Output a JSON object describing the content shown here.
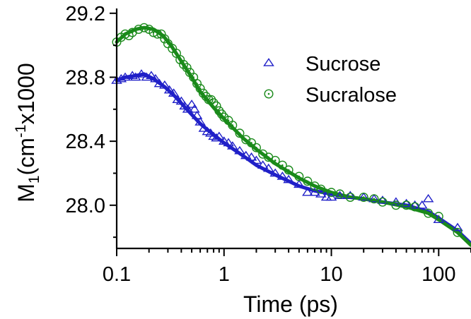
{
  "chart_data": {
    "type": "scatter",
    "title": "",
    "xlabel": "Time (ps)",
    "ylabel": {
      "main": "M",
      "sub": "1",
      "open": "(cm",
      "sup": "-1",
      "close": "x1000"
    },
    "x_scale": "log",
    "xlim": [
      0.1,
      200
    ],
    "ylim": [
      27.73,
      29.23
    ],
    "x_ticks": [
      0.1,
      1,
      10,
      100
    ],
    "x_tick_labels": [
      "0.1",
      "1",
      "10",
      "100"
    ],
    "y_ticks": [
      28.0,
      28.4,
      28.8,
      29.2
    ],
    "y_tick_labels": [
      "28.0",
      "28.4",
      "28.8",
      "29.2"
    ],
    "grid": false,
    "legend_position": "top-right",
    "series": [
      {
        "name": "Sucrose",
        "color": "#2020c8",
        "marker": "triangle",
        "points": [
          [
            0.1,
            28.78
          ],
          [
            0.11,
            28.79
          ],
          [
            0.12,
            28.8
          ],
          [
            0.14,
            28.81
          ],
          [
            0.15,
            28.8
          ],
          [
            0.17,
            28.82
          ],
          [
            0.19,
            28.8
          ],
          [
            0.21,
            28.81
          ],
          [
            0.23,
            28.79
          ],
          [
            0.25,
            28.76
          ],
          [
            0.28,
            28.75
          ],
          [
            0.31,
            28.72
          ],
          [
            0.34,
            28.7
          ],
          [
            0.37,
            28.66
          ],
          [
            0.4,
            28.65
          ],
          [
            0.43,
            28.62
          ],
          [
            0.46,
            28.6
          ],
          [
            0.5,
            28.63
          ],
          [
            0.53,
            28.6
          ],
          [
            0.56,
            28.56
          ],
          [
            0.6,
            28.52
          ],
          [
            0.65,
            28.48
          ],
          [
            0.7,
            28.46
          ],
          [
            0.75,
            28.45
          ],
          [
            0.8,
            28.43
          ],
          [
            0.85,
            28.42
          ],
          [
            0.9,
            28.43
          ],
          [
            1.0,
            28.4
          ],
          [
            1.1,
            28.39
          ],
          [
            1.2,
            28.37
          ],
          [
            1.4,
            28.34
          ],
          [
            1.6,
            28.31
          ],
          [
            1.8,
            28.3
          ],
          [
            2.0,
            28.28
          ],
          [
            2.3,
            28.25
          ],
          [
            2.6,
            28.23
          ],
          [
            3.0,
            28.2
          ],
          [
            3.5,
            28.18
          ],
          [
            4.0,
            28.16
          ],
          [
            5.0,
            28.13
          ],
          [
            6.0,
            28.08
          ],
          [
            7.0,
            28.08
          ],
          [
            8.0,
            28.07
          ],
          [
            9.0,
            28.05
          ],
          [
            10,
            28.05
          ],
          [
            12,
            28.06
          ],
          [
            15,
            28.06
          ],
          [
            20,
            28.05
          ],
          [
            25,
            28.04
          ],
          [
            30,
            28.03
          ],
          [
            40,
            28.02
          ],
          [
            50,
            28.01
          ],
          [
            60,
            28.0
          ],
          [
            70,
            28.0
          ],
          [
            80,
            28.04
          ],
          [
            100,
            27.91
          ],
          [
            150,
            27.86
          ]
        ],
        "fit": [
          [
            0.1,
            28.78
          ],
          [
            0.12,
            28.8
          ],
          [
            0.15,
            28.81
          ],
          [
            0.18,
            28.82
          ],
          [
            0.22,
            28.79
          ],
          [
            0.28,
            28.74
          ],
          [
            0.35,
            28.68
          ],
          [
            0.45,
            28.6
          ],
          [
            0.6,
            28.51
          ],
          [
            0.8,
            28.44
          ],
          [
            1.0,
            28.39
          ],
          [
            1.5,
            28.31
          ],
          [
            2.0,
            28.25
          ],
          [
            3.0,
            28.19
          ],
          [
            5.0,
            28.12
          ],
          [
            7.0,
            28.09
          ],
          [
            10,
            28.07
          ],
          [
            15,
            28.05
          ],
          [
            20,
            28.04
          ],
          [
            30,
            28.02
          ],
          [
            50,
            28.0
          ],
          [
            80,
            27.96
          ],
          [
            100,
            27.92
          ],
          [
            150,
            27.84
          ],
          [
            200,
            27.76
          ]
        ]
      },
      {
        "name": "Sucralose",
        "color": "#1a8a1a",
        "marker": "circle",
        "points": [
          [
            0.1,
            29.02
          ],
          [
            0.11,
            29.05
          ],
          [
            0.12,
            29.07
          ],
          [
            0.13,
            29.06
          ],
          [
            0.14,
            29.08
          ],
          [
            0.16,
            29.1
          ],
          [
            0.18,
            29.11
          ],
          [
            0.2,
            29.1
          ],
          [
            0.22,
            29.08
          ],
          [
            0.24,
            29.07
          ],
          [
            0.26,
            29.07
          ],
          [
            0.28,
            29.04
          ],
          [
            0.3,
            29.01
          ],
          [
            0.33,
            28.98
          ],
          [
            0.36,
            28.95
          ],
          [
            0.39,
            28.91
          ],
          [
            0.42,
            28.88
          ],
          [
            0.45,
            28.86
          ],
          [
            0.48,
            28.83
          ],
          [
            0.52,
            28.8
          ],
          [
            0.56,
            28.76
          ],
          [
            0.6,
            28.73
          ],
          [
            0.64,
            28.7
          ],
          [
            0.68,
            28.68
          ],
          [
            0.72,
            28.66
          ],
          [
            0.76,
            28.66
          ],
          [
            0.8,
            28.64
          ],
          [
            0.85,
            28.62
          ],
          [
            0.9,
            28.59
          ],
          [
            0.95,
            28.57
          ],
          [
            1.0,
            28.55
          ],
          [
            1.1,
            28.53
          ],
          [
            1.2,
            28.5
          ],
          [
            1.4,
            28.45
          ],
          [
            1.6,
            28.41
          ],
          [
            1.8,
            28.39
          ],
          [
            2.0,
            28.36
          ],
          [
            2.3,
            28.32
          ],
          [
            2.6,
            28.3
          ],
          [
            3.0,
            28.28
          ],
          [
            3.5,
            28.25
          ],
          [
            4.0,
            28.22
          ],
          [
            5.0,
            28.18
          ],
          [
            6.0,
            28.15
          ],
          [
            7.0,
            28.12
          ],
          [
            8.0,
            28.1
          ],
          [
            10,
            28.08
          ],
          [
            12,
            28.07
          ],
          [
            15,
            28.05
          ],
          [
            20,
            28.05
          ],
          [
            25,
            28.04
          ],
          [
            30,
            28.02
          ],
          [
            40,
            28.0
          ],
          [
            50,
            28.0
          ],
          [
            60,
            27.99
          ],
          [
            80,
            27.95
          ],
          [
            100,
            27.93
          ],
          [
            150,
            27.83
          ]
        ],
        "fit": [
          [
            0.1,
            29.02
          ],
          [
            0.12,
            29.07
          ],
          [
            0.15,
            29.1
          ],
          [
            0.18,
            29.11
          ],
          [
            0.22,
            29.1
          ],
          [
            0.27,
            29.06
          ],
          [
            0.32,
            29.0
          ],
          [
            0.4,
            28.9
          ],
          [
            0.5,
            28.8
          ],
          [
            0.6,
            28.71
          ],
          [
            0.8,
            28.61
          ],
          [
            1.0,
            28.54
          ],
          [
            1.5,
            28.42
          ],
          [
            2.0,
            28.35
          ],
          [
            3.0,
            28.26
          ],
          [
            5.0,
            28.17
          ],
          [
            7.0,
            28.12
          ],
          [
            10,
            28.08
          ],
          [
            15,
            28.05
          ],
          [
            20,
            28.04
          ],
          [
            30,
            28.02
          ],
          [
            50,
            27.99
          ],
          [
            80,
            27.95
          ],
          [
            100,
            27.91
          ],
          [
            150,
            27.83
          ],
          [
            200,
            27.75
          ]
        ]
      }
    ]
  }
}
